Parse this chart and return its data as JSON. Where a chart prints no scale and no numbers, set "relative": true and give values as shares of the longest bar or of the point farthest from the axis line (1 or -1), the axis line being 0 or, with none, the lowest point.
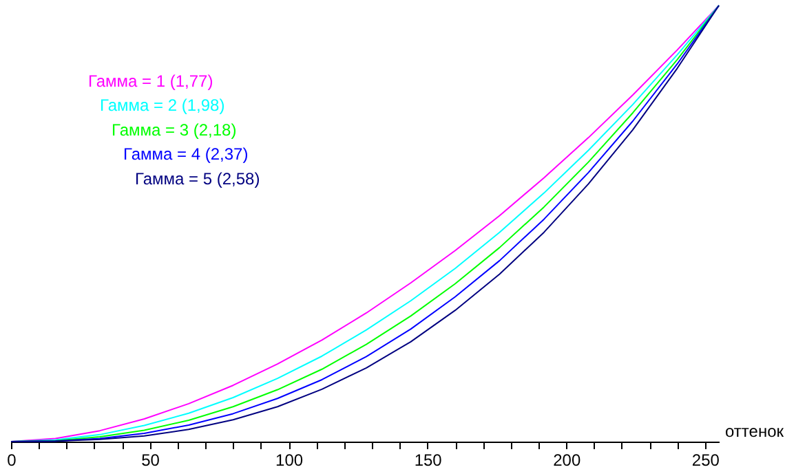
{
  "chart_data": {
    "type": "line",
    "relative": true,
    "xlabel": "оттенок",
    "legend": "top left",
    "grid": false,
    "marker": "none",
    "line_style": "solid",
    "xlim": [
      0,
      255
    ],
    "xticks": [
      0,
      {
        "value": 10,
        "label": null
      },
      {
        "value": 20,
        "label": null
      },
      {
        "value": 30,
        "label": null
      },
      {
        "value": 40,
        "label": null
      },
      50,
      {
        "value": 60,
        "label": null
      },
      {
        "value": 70,
        "label": null
      },
      {
        "value": 80,
        "label": null
      },
      {
        "value": 90,
        "label": null
      },
      100,
      {
        "value": 110,
        "label": null
      },
      {
        "value": 120,
        "label": null
      },
      {
        "value": 130,
        "label": null
      },
      {
        "value": 140,
        "label": null
      },
      150,
      {
        "value": 160,
        "label": null
      },
      {
        "value": 170,
        "label": null
      },
      {
        "value": 180,
        "label": null
      },
      {
        "value": 190,
        "label": null
      },
      200,
      {
        "value": 210,
        "label": null
      },
      {
        "value": 220,
        "label": null
      },
      {
        "value": 230,
        "label": null
      },
      {
        "value": 240,
        "label": null
      },
      250
    ],
    "x": [
      0,
      16,
      32,
      48,
      64,
      80,
      96,
      112,
      128,
      144,
      160,
      176,
      192,
      208,
      224,
      240,
      255
    ],
    "series": [
      {
        "name": "Гамма = 1 (1,77)",
        "color": "#ff00ff",
        "values": [
          0,
          0.007,
          0.025,
          0.052,
          0.087,
          0.129,
          0.178,
          0.233,
          0.295,
          0.364,
          0.438,
          0.518,
          0.605,
          0.697,
          0.795,
          0.898,
          1
        ]
      },
      {
        "name": "Гамма = 2 (1,98)",
        "color": "#00ffff",
        "values": [
          0,
          0.004,
          0.016,
          0.037,
          0.065,
          0.101,
          0.145,
          0.196,
          0.256,
          0.323,
          0.397,
          0.48,
          0.57,
          0.668,
          0.773,
          0.887,
          1
        ]
      },
      {
        "name": "Гамма = 3 (2,18)",
        "color": "#00ff00",
        "values": [
          0,
          0.002,
          0.011,
          0.026,
          0.049,
          0.08,
          0.119,
          0.166,
          0.223,
          0.288,
          0.362,
          0.445,
          0.538,
          0.641,
          0.754,
          0.876,
          1
        ]
      },
      {
        "name": "Гамма = 4 (2,37)",
        "color": "#0000ff",
        "values": [
          0,
          0.001,
          0.007,
          0.019,
          0.038,
          0.064,
          0.099,
          0.142,
          0.195,
          0.258,
          0.332,
          0.415,
          0.51,
          0.617,
          0.735,
          0.866,
          1
        ]
      },
      {
        "name": "Гамма = 5 (2,58)",
        "color": "#000080",
        "values": [
          0,
          0.001,
          0.005,
          0.013,
          0.028,
          0.05,
          0.08,
          0.12,
          0.169,
          0.229,
          0.301,
          0.384,
          0.48,
          0.591,
          0.715,
          0.856,
          1
        ]
      }
    ]
  }
}
